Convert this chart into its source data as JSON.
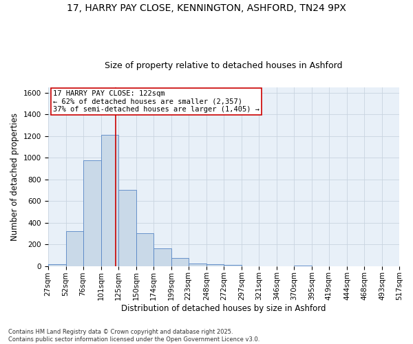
{
  "title_line1": "17, HARRY PAY CLOSE, KENNINGTON, ASHFORD, TN24 9PX",
  "title_line2": "Size of property relative to detached houses in Ashford",
  "xlabel": "Distribution of detached houses by size in Ashford",
  "ylabel": "Number of detached properties",
  "bin_labels": [
    "27sqm",
    "52sqm",
    "76sqm",
    "101sqm",
    "125sqm",
    "150sqm",
    "174sqm",
    "199sqm",
    "223sqm",
    "248sqm",
    "272sqm",
    "297sqm",
    "321sqm",
    "346sqm",
    "370sqm",
    "395sqm",
    "419sqm",
    "444sqm",
    "468sqm",
    "493sqm",
    "517sqm"
  ],
  "bin_edges": [
    27,
    52,
    76,
    101,
    125,
    150,
    174,
    199,
    223,
    248,
    272,
    297,
    321,
    346,
    370,
    395,
    419,
    444,
    468,
    493,
    517
  ],
  "bar_heights": [
    20,
    320,
    975,
    1210,
    700,
    305,
    160,
    75,
    25,
    15,
    10,
    0,
    0,
    0,
    5,
    0,
    0,
    0,
    0,
    0,
    10
  ],
  "bar_color": "#c9d9e8",
  "bar_edgecolor": "#5585c5",
  "reference_line_x": 122,
  "reference_line_color": "#cc0000",
  "annotation_text": "17 HARRY PAY CLOSE: 122sqm\n← 62% of detached houses are smaller (2,357)\n37% of semi-detached houses are larger (1,405) →",
  "annotation_box_edgecolor": "#cc0000",
  "annotation_box_facecolor": "#ffffff",
  "ylim": [
    0,
    1650
  ],
  "yticks": [
    0,
    200,
    400,
    600,
    800,
    1000,
    1200,
    1400,
    1600
  ],
  "grid_color": "#c8d4e0",
  "background_color": "#e8f0f8",
  "footnote": "Contains HM Land Registry data © Crown copyright and database right 2025.\nContains public sector information licensed under the Open Government Licence v3.0.",
  "title_fontsize": 10,
  "subtitle_fontsize": 9,
  "axis_label_fontsize": 8.5,
  "tick_fontsize": 7.5,
  "annotation_fontsize": 7.5,
  "footnote_fontsize": 6
}
